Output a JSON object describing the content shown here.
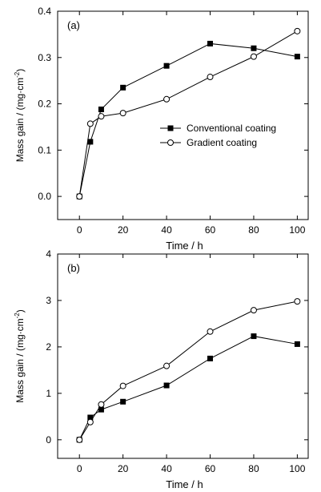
{
  "chart_data": [
    {
      "type": "line",
      "panel_label": "(a)",
      "xlabel": "Time / h",
      "ylabel_main": "Mass gain / (mg·cm",
      "ylabel_sup": "-2",
      "ylabel_tail": ")",
      "xlim": [
        -10,
        105
      ],
      "ylim": [
        -0.05,
        0.4
      ],
      "xticks": [
        0,
        20,
        40,
        60,
        80,
        100
      ],
      "xtick_labels": [
        "0",
        "20",
        "40",
        "60",
        "80",
        "100"
      ],
      "yticks": [
        0.0,
        0.1,
        0.2,
        0.3,
        0.4
      ],
      "ytick_labels": [
        "0.0",
        "0.1",
        "0.2",
        "0.3",
        "0.4"
      ],
      "legend_position": "center-right",
      "series": [
        {
          "name": "Conventional coating",
          "marker": "filled-square",
          "x": [
            0,
            5,
            10,
            20,
            40,
            60,
            80,
            100
          ],
          "y": [
            0.0,
            0.118,
            0.188,
            0.235,
            0.282,
            0.33,
            0.32,
            0.302
          ]
        },
        {
          "name": "Gradient coating",
          "marker": "open-circle",
          "x": [
            0,
            5,
            10,
            20,
            40,
            60,
            80,
            100
          ],
          "y": [
            0.0,
            0.157,
            0.173,
            0.18,
            0.21,
            0.258,
            0.302,
            0.357
          ]
        }
      ]
    },
    {
      "type": "line",
      "panel_label": "(b)",
      "xlabel": "Time / h",
      "ylabel_main": "Mass gain / (mg·cm",
      "ylabel_sup": "-2",
      "ylabel_tail": ")",
      "xlim": [
        -10,
        105
      ],
      "ylim": [
        -0.4,
        4
      ],
      "xticks": [
        0,
        20,
        40,
        60,
        80,
        100
      ],
      "xtick_labels": [
        "0",
        "20",
        "40",
        "60",
        "80",
        "100"
      ],
      "yticks": [
        0,
        1,
        2,
        3,
        4
      ],
      "ytick_labels": [
        "0",
        "1",
        "2",
        "3",
        "4"
      ],
      "series": [
        {
          "marker": "filled-square",
          "x": [
            0,
            5,
            10,
            20,
            40,
            60,
            80,
            100
          ],
          "y": [
            0.0,
            0.48,
            0.65,
            0.82,
            1.17,
            1.75,
            2.23,
            2.06
          ]
        },
        {
          "marker": "open-circle",
          "x": [
            0,
            5,
            10,
            20,
            40,
            60,
            80,
            100
          ],
          "y": [
            0.0,
            0.38,
            0.76,
            1.16,
            1.59,
            2.33,
            2.79,
            2.98
          ]
        }
      ]
    }
  ]
}
